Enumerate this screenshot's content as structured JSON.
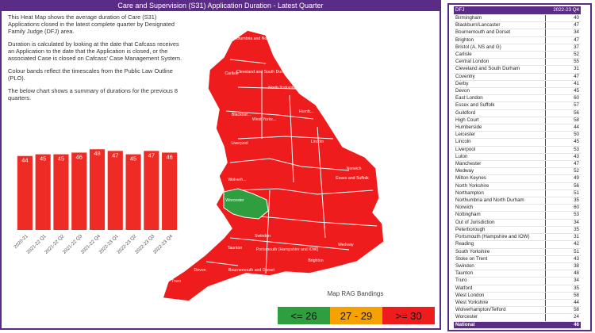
{
  "header": {
    "title": "Care and Supervision (S31) Application Duration - Latest Quarter"
  },
  "description": [
    "This Heat Map shows the average duration of Care (S31) Applications closed in the latest complete quarter by Designated Family Judge (DFJ) area.",
    "Duration is calculated by looking at the date that Cafcass receives an Application to the date that the Application is closed, or the associated Case is closed on Cafcass' Case Management System.",
    "Colour bands reflect the timescales from the Public Law Outline (PLO).",
    "The below chart shows a summary of durations for the previous 8 quarters."
  ],
  "chart_data": {
    "type": "bar",
    "categories": [
      "2020-21",
      "2021-22 Q1",
      "2021-22 Q2",
      "2021-22 Q3",
      "2021-22 Q4",
      "2022-23 Q1",
      "2022-23 Q2",
      "2022-23 Q3",
      "2022-23 Q4"
    ],
    "values": [
      44,
      45,
      45,
      46,
      48,
      47,
      45,
      47,
      46
    ],
    "color": "#ee2b24",
    "ylim": [
      0,
      50
    ]
  },
  "map": {
    "labels": [
      "Northumbria and North Durham",
      "Carlisle",
      "Cleveland and South Durham",
      "North Yorkshire",
      "Blackbur...",
      "West Yorks...",
      "Humb...",
      "Liverpool",
      "Lincoln",
      "Norwich",
      "Wolverh...",
      "Worcester",
      "Essex and Suffolk",
      "Swindon",
      "Devon",
      "Truro",
      "Bournemouth and Dorset",
      "Brighton",
      "Medway",
      "Taunton",
      "Portsmouth (Hampshire and IOW)"
    ],
    "legend": {
      "title": "Map RAG Bandings",
      "bands": [
        {
          "label": "<= 26",
          "color": "#2e9e3e"
        },
        {
          "label": "27 - 29",
          "color": "#f5a100"
        },
        {
          "label": ">= 30",
          "color": "#ee1c1c"
        }
      ]
    }
  },
  "table": {
    "columns": [
      "DFJ",
      "2022-23 Q4"
    ],
    "rows": [
      [
        "Birmingham",
        40
      ],
      [
        "Blackburn/Lancaster",
        47
      ],
      [
        "Bournemouth and Dorset",
        34
      ],
      [
        "Brighton",
        47
      ],
      [
        "Bristol (A, NS and G)",
        37
      ],
      [
        "Carlisle",
        52
      ],
      [
        "Central London",
        55
      ],
      [
        "Cleveland and South Durham",
        31
      ],
      [
        "Coventry",
        47
      ],
      [
        "Derby",
        41
      ],
      [
        "Devon",
        45
      ],
      [
        "East London",
        60
      ],
      [
        "Essex and Suffolk",
        57
      ],
      [
        "Guildford",
        56
      ],
      [
        "High Court",
        58
      ],
      [
        "Humberside",
        44
      ],
      [
        "Leicester",
        50
      ],
      [
        "Lincoln",
        45
      ],
      [
        "Liverpool",
        53
      ],
      [
        "Luton",
        43
      ],
      [
        "Manchester",
        47
      ],
      [
        "Medway",
        52
      ],
      [
        "Milton Keynes",
        49
      ],
      [
        "North Yorkshire",
        56
      ],
      [
        "Northampton",
        51
      ],
      [
        "Northumbria and North Durham",
        35
      ],
      [
        "Norwich",
        60
      ],
      [
        "Nottingham",
        53
      ],
      [
        "Out of Jurisdiction",
        34
      ],
      [
        "Peterborough",
        35
      ],
      [
        "Portsmouth (Hampshire and IOW)",
        31
      ],
      [
        "Reading",
        42
      ],
      [
        "South Yorkshire",
        51
      ],
      [
        "Stoke on Trent",
        43
      ],
      [
        "Swindon",
        38
      ],
      [
        "Taunton",
        48
      ],
      [
        "Truro",
        34
      ],
      [
        "Watford",
        35
      ],
      [
        "West London",
        58
      ],
      [
        "West Yorkshire",
        44
      ],
      [
        "Wolverhampton/Telford",
        58
      ],
      [
        "Worcester",
        24
      ]
    ],
    "total": [
      "National",
      46
    ]
  }
}
